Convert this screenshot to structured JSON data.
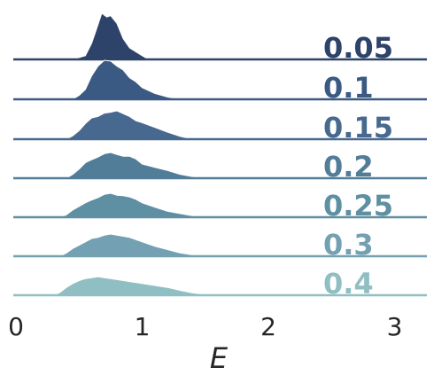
{
  "chart_data": {
    "type": "area",
    "subtype": "ridgeline",
    "xlabel": "E",
    "xlim": [
      0,
      3.25
    ],
    "xticks": [
      "0",
      "1",
      "2",
      "3"
    ],
    "grid": false,
    "series": [
      {
        "name": "0.05",
        "color": "#2e4369",
        "x": [
          0.45,
          0.55,
          0.6,
          0.65,
          0.68,
          0.72,
          0.75,
          0.8,
          0.85,
          0.9,
          1.0,
          1.05
        ],
        "y": [
          0.0,
          0.08,
          0.35,
          0.75,
          1.0,
          0.92,
          0.95,
          0.78,
          0.45,
          0.25,
          0.08,
          0.0
        ]
      },
      {
        "name": "0.1",
        "color": "#3b5a83",
        "x": [
          0.45,
          0.5,
          0.55,
          0.6,
          0.65,
          0.7,
          0.75,
          0.8,
          0.85,
          0.9,
          0.95,
          1.0,
          1.1,
          1.2,
          1.3
        ],
        "y": [
          0.0,
          0.1,
          0.25,
          0.6,
          0.85,
          1.0,
          0.98,
          0.85,
          0.75,
          0.55,
          0.45,
          0.3,
          0.15,
          0.06,
          0.0
        ]
      },
      {
        "name": "0.15",
        "color": "#47698f",
        "x": [
          0.4,
          0.45,
          0.5,
          0.55,
          0.6,
          0.65,
          0.7,
          0.75,
          0.8,
          0.85,
          0.9,
          0.95,
          1.0,
          1.1,
          1.2,
          1.3,
          1.4
        ],
        "y": [
          0.0,
          0.12,
          0.3,
          0.55,
          0.75,
          0.8,
          0.92,
          0.95,
          1.0,
          0.9,
          0.8,
          0.65,
          0.58,
          0.42,
          0.25,
          0.1,
          0.0
        ]
      },
      {
        "name": "0.2",
        "color": "#517d98",
        "x": [
          0.4,
          0.45,
          0.5,
          0.55,
          0.6,
          0.65,
          0.7,
          0.75,
          0.8,
          0.85,
          0.9,
          0.95,
          1.0,
          1.1,
          1.2,
          1.3,
          1.4,
          1.5
        ],
        "y": [
          0.0,
          0.15,
          0.35,
          0.6,
          0.72,
          0.82,
          0.95,
          1.0,
          0.92,
          0.85,
          0.85,
          0.75,
          0.55,
          0.42,
          0.3,
          0.15,
          0.06,
          0.0
        ]
      },
      {
        "name": "0.25",
        "color": "#5e8fa3",
        "x": [
          0.35,
          0.4,
          0.45,
          0.5,
          0.55,
          0.6,
          0.65,
          0.7,
          0.75,
          0.8,
          0.85,
          0.9,
          0.95,
          1.0,
          1.1,
          1.2,
          1.3,
          1.4,
          1.5
        ],
        "y": [
          0.0,
          0.1,
          0.3,
          0.45,
          0.6,
          0.72,
          0.82,
          0.95,
          1.0,
          0.92,
          0.9,
          0.85,
          0.75,
          0.6,
          0.42,
          0.25,
          0.15,
          0.06,
          0.0
        ]
      },
      {
        "name": "0.3",
        "color": "#73a1b3",
        "x": [
          0.35,
          0.4,
          0.45,
          0.5,
          0.55,
          0.6,
          0.65,
          0.7,
          0.75,
          0.8,
          0.85,
          0.9,
          1.0,
          1.1,
          1.2,
          1.3,
          1.4,
          1.5
        ],
        "y": [
          0.0,
          0.15,
          0.35,
          0.5,
          0.65,
          0.8,
          0.85,
          0.95,
          1.0,
          0.95,
          0.9,
          0.85,
          0.65,
          0.45,
          0.3,
          0.15,
          0.06,
          0.0
        ]
      },
      {
        "name": "0.4",
        "color": "#8fbfc3",
        "x": [
          0.3,
          0.35,
          0.4,
          0.45,
          0.5,
          0.55,
          0.6,
          0.65,
          0.7,
          0.8,
          0.9,
          1.0,
          1.1,
          1.2,
          1.3,
          1.4,
          1.5,
          1.6
        ],
        "y": [
          0.0,
          0.15,
          0.4,
          0.6,
          0.75,
          0.85,
          0.9,
          0.95,
          0.9,
          0.8,
          0.7,
          0.6,
          0.5,
          0.4,
          0.25,
          0.12,
          0.04,
          0.0
        ]
      }
    ]
  }
}
